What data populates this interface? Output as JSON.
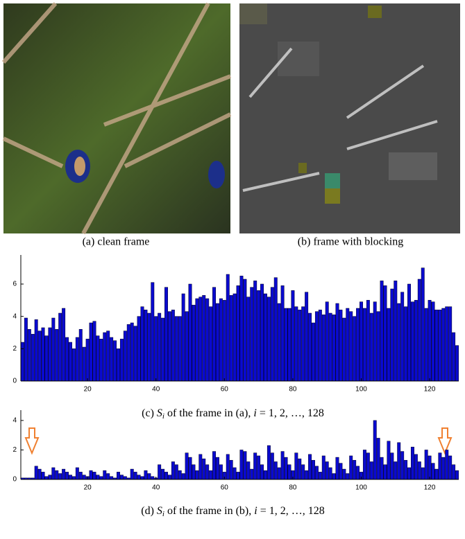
{
  "figures": [
    {
      "caption": "(a) clean frame"
    },
    {
      "caption": "(b) frame with blocking"
    }
  ],
  "chart_data": [
    {
      "type": "bar",
      "color": "#0a0acf",
      "caption_parts": [
        "(c) ",
        "S",
        "i",
        " of the frame in (a), ",
        "i",
        " = 1, 2, …, 128"
      ],
      "xlim": [
        0.5,
        128.5
      ],
      "xticks": [
        20,
        40,
        60,
        80,
        100,
        120
      ],
      "ylim": [
        0,
        7.8
      ],
      "yticks": [
        0,
        2,
        4,
        6
      ],
      "values": [
        2.4,
        3.9,
        3.2,
        2.9,
        3.8,
        3.1,
        3.3,
        2.8,
        3.3,
        3.9,
        3.2,
        4.2,
        4.5,
        2.7,
        2.4,
        2.0,
        2.7,
        3.2,
        2.1,
        2.6,
        3.6,
        3.7,
        2.8,
        2.6,
        3.0,
        3.1,
        2.7,
        2.5,
        2.0,
        2.6,
        3.1,
        3.5,
        3.6,
        3.4,
        4.0,
        4.6,
        4.4,
        4.2,
        6.1,
        4.0,
        4.2,
        3.9,
        5.8,
        4.3,
        4.4,
        4.0,
        4.0,
        5.4,
        4.3,
        6.0,
        4.7,
        5.1,
        5.2,
        5.3,
        5.1,
        4.6,
        5.8,
        4.8,
        5.1,
        5.0,
        6.6,
        5.3,
        5.4,
        5.9,
        6.5,
        6.3,
        5.2,
        5.8,
        6.2,
        5.6,
        6.0,
        5.4,
        5.2,
        5.8,
        6.4,
        4.8,
        5.9,
        4.5,
        4.5,
        5.6,
        4.6,
        4.4,
        4.6,
        5.5,
        4.2,
        3.6,
        4.3,
        4.4,
        4.1,
        4.9,
        4.2,
        4.1,
        4.8,
        4.4,
        3.9,
        4.5,
        4.3,
        4.0,
        4.5,
        4.9,
        4.5,
        5.0,
        4.2,
        4.9,
        4.3,
        6.2,
        5.9,
        4.5,
        5.7,
        6.2,
        4.8,
        5.5,
        4.6,
        6.0,
        4.9,
        5.0,
        6.3,
        7.0,
        4.5,
        5.0,
        4.9,
        4.4,
        4.4,
        4.5,
        4.6,
        4.6,
        3.0,
        2.2
      ]
    },
    {
      "type": "bar",
      "color": "#0a0acf",
      "caption_parts": [
        "(d) ",
        "S",
        "i",
        " of the frame in (b), ",
        "i",
        " = 1, 2, …, 128"
      ],
      "xlim": [
        0.5,
        128.5
      ],
      "xticks": [
        20,
        40,
        60,
        80,
        100,
        120
      ],
      "ylim": [
        0,
        4.7
      ],
      "yticks": [
        0,
        2,
        4
      ],
      "values": [
        0.1,
        0.1,
        0.1,
        0.1,
        0.9,
        0.7,
        0.5,
        0.2,
        0.3,
        0.8,
        0.6,
        0.4,
        0.7,
        0.5,
        0.3,
        0.2,
        0.8,
        0.5,
        0.3,
        0.2,
        0.6,
        0.5,
        0.3,
        0.2,
        0.6,
        0.4,
        0.2,
        0.1,
        0.5,
        0.3,
        0.2,
        0.1,
        0.7,
        0.5,
        0.3,
        0.2,
        0.6,
        0.4,
        0.2,
        0.1,
        1.0,
        0.7,
        0.5,
        0.3,
        1.2,
        1.0,
        0.6,
        0.4,
        1.8,
        1.5,
        1.0,
        0.6,
        1.7,
        1.4,
        1.0,
        0.6,
        1.9,
        1.5,
        1.0,
        0.5,
        1.7,
        1.3,
        0.8,
        0.5,
        2.0,
        1.9,
        1.2,
        0.7,
        1.8,
        1.6,
        1.0,
        0.6,
        2.3,
        1.8,
        1.2,
        0.8,
        1.9,
        1.5,
        1.0,
        0.6,
        1.8,
        1.4,
        1.0,
        0.6,
        1.7,
        1.3,
        0.9,
        0.5,
        1.6,
        1.2,
        0.8,
        0.4,
        1.5,
        1.1,
        0.7,
        0.4,
        1.6,
        1.3,
        0.9,
        0.5,
        2.0,
        1.8,
        1.2,
        4.0,
        2.8,
        1.5,
        1.0,
        2.6,
        1.8,
        1.2,
        2.5,
        1.9,
        1.3,
        0.8,
        2.2,
        1.7,
        1.2,
        0.8,
        2.0,
        1.6,
        1.1,
        0.7,
        1.8,
        1.5,
        2.0,
        1.6,
        1.0,
        0.6
      ]
    }
  ]
}
